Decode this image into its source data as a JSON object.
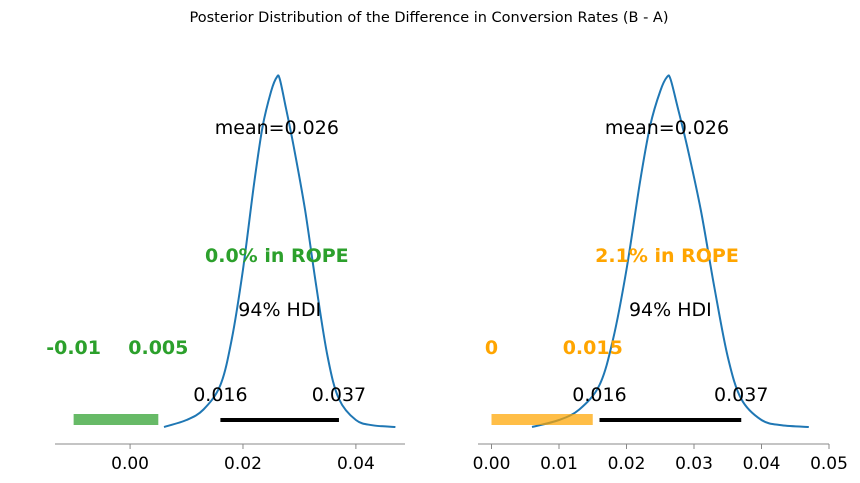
{
  "title": "Posterior Distribution of the Difference in Conversion Rates (B - A)",
  "chart_data": [
    {
      "type": "density",
      "name": "left-panel",
      "xlim": [
        -0.0133,
        0.0487
      ],
      "ylim": [
        0,
        1
      ],
      "ticks": [
        0.0,
        0.02,
        0.04
      ],
      "tick_labels": [
        "0.00",
        "0.02",
        "0.04"
      ],
      "density": {
        "x": [
          0.006,
          0.01,
          0.013,
          0.016,
          0.018,
          0.02,
          0.022,
          0.0235,
          0.025,
          0.026,
          0.0265,
          0.0275,
          0.029,
          0.031,
          0.033,
          0.035,
          0.037,
          0.04,
          0.043,
          0.047
        ],
        "y": [
          0.0,
          0.02,
          0.05,
          0.12,
          0.25,
          0.45,
          0.7,
          0.86,
          0.96,
          1.0,
          0.995,
          0.92,
          0.8,
          0.62,
          0.4,
          0.2,
          0.08,
          0.02,
          0.005,
          0.0
        ]
      },
      "curve_color": "#1f77b4",
      "mean_label": "mean=0.026",
      "mean_value": 0.026,
      "rope_text": "0.0% in ROPE",
      "rope_color": "#2ca02c",
      "rope_range": [
        -0.01,
        0.005
      ],
      "rope_labels": [
        "-0.01",
        "0.005"
      ],
      "hdi_label": "94% HDI",
      "hdi_range": [
        0.016,
        0.037
      ],
      "hdi_labels": [
        "0.016",
        "0.037"
      ]
    },
    {
      "type": "density",
      "name": "right-panel",
      "xlim": [
        -0.002,
        0.05
      ],
      "ylim": [
        0,
        1
      ],
      "ticks": [
        0.0,
        0.01,
        0.02,
        0.03,
        0.04,
        0.05
      ],
      "tick_labels": [
        "0.00",
        "0.01",
        "0.02",
        "0.03",
        "0.04",
        "0.05"
      ],
      "density": {
        "x": [
          0.006,
          0.01,
          0.013,
          0.016,
          0.018,
          0.02,
          0.022,
          0.0235,
          0.025,
          0.026,
          0.0265,
          0.0275,
          0.029,
          0.031,
          0.033,
          0.035,
          0.037,
          0.04,
          0.043,
          0.047
        ],
        "y": [
          0.0,
          0.02,
          0.05,
          0.12,
          0.25,
          0.45,
          0.7,
          0.86,
          0.96,
          1.0,
          0.995,
          0.92,
          0.8,
          0.62,
          0.4,
          0.2,
          0.08,
          0.02,
          0.005,
          0.0
        ]
      },
      "curve_color": "#1f77b4",
      "mean_label": "mean=0.026",
      "mean_value": 0.026,
      "rope_text": "2.1% in ROPE",
      "rope_color": "#ffa500",
      "rope_range": [
        0,
        0.015
      ],
      "rope_labels": [
        "0",
        "0.015"
      ],
      "hdi_label": "94% HDI",
      "hdi_range": [
        0.016,
        0.037
      ],
      "hdi_labels": [
        "0.016",
        "0.037"
      ]
    }
  ]
}
